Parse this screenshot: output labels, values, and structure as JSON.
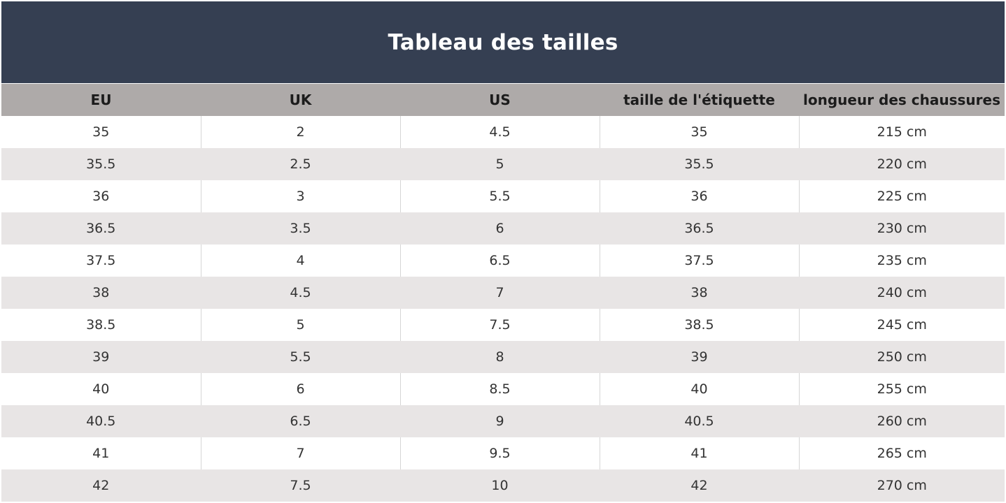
{
  "title": "Tableau des tailles",
  "columns": [
    "EU",
    "UK",
    "US",
    "taille de l'étiquette",
    "longueur des chaussures"
  ],
  "rows": [
    [
      "35",
      "2",
      "4.5",
      "35",
      "215 cm"
    ],
    [
      "35.5",
      "2.5",
      "5",
      "35.5",
      "220 cm"
    ],
    [
      "36",
      "3",
      "5.5",
      "36",
      "225 cm"
    ],
    [
      "36.5",
      "3.5",
      "6",
      "36.5",
      "230 cm"
    ],
    [
      "37.5",
      "4",
      "6.5",
      "37.5",
      "235 cm"
    ],
    [
      "38",
      "4.5",
      "7",
      "38",
      "240 cm"
    ],
    [
      "38.5",
      "5",
      "7.5",
      "38.5",
      "245 cm"
    ],
    [
      "39",
      "5.5",
      "8",
      "39",
      "250 cm"
    ],
    [
      "40",
      "6",
      "8.5",
      "40",
      "255 cm"
    ],
    [
      "40.5",
      "6.5",
      "9",
      "40.5",
      "260 cm"
    ],
    [
      "41",
      "7",
      "9.5",
      "41",
      "265 cm"
    ],
    [
      "42",
      "7.5",
      "10",
      "42",
      "270 cm"
    ]
  ],
  "colors": {
    "title_background": "#353f52",
    "header_background": "#aeaaa9",
    "alt_row_background": "#e8e5e5"
  }
}
